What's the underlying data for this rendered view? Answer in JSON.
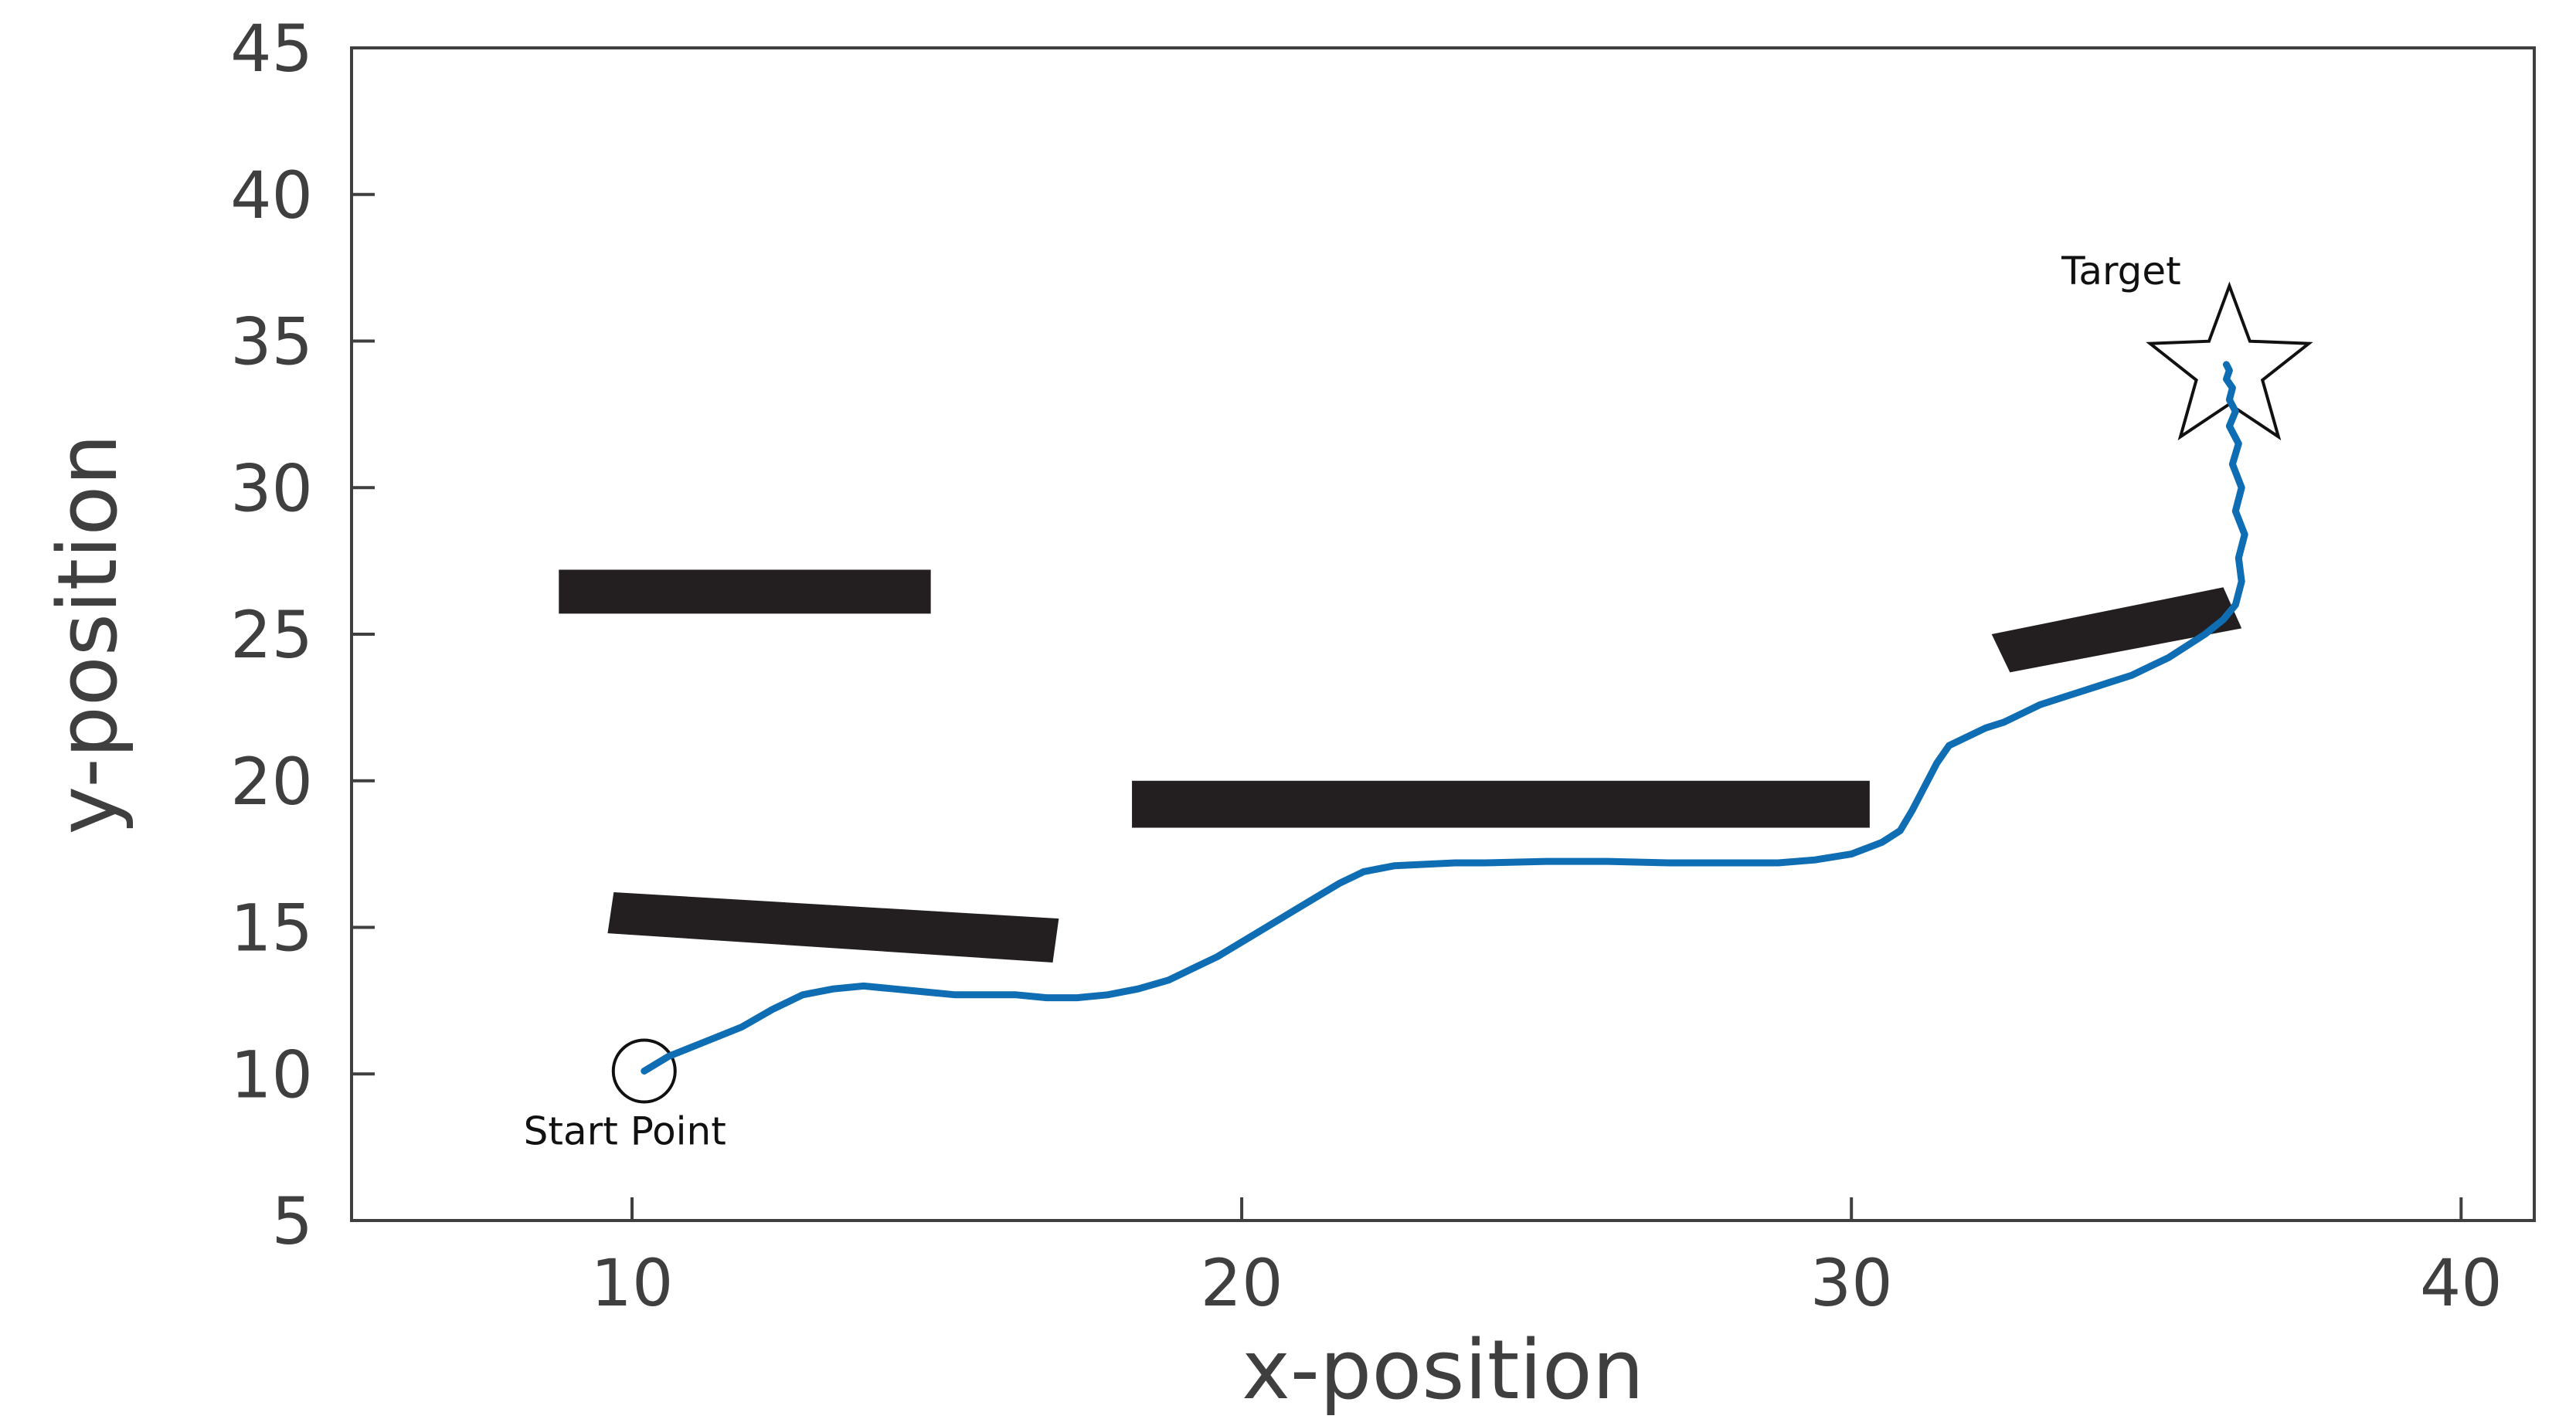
{
  "chart_data": {
    "type": "line",
    "title": "",
    "xlabel": "x-position",
    "ylabel": "y-position",
    "xlim": [
      5.4,
      41.2
    ],
    "ylim": [
      5,
      45
    ],
    "xticks": [
      10,
      20,
      30,
      40
    ],
    "yticks": [
      5,
      10,
      15,
      20,
      25,
      30,
      35,
      40,
      45
    ],
    "grid": false,
    "legend": "none",
    "colors": {
      "path": "#0f6db3",
      "obstacle": "#231f20",
      "axis": "#3f3f3f"
    },
    "series": [
      {
        "name": "",
        "x": [
          10.2,
          10.6,
          11.2,
          11.8,
          12.3,
          12.8,
          13.3,
          13.8,
          14.3,
          14.8,
          15.3,
          15.8,
          16.3,
          16.8,
          17.3,
          17.8,
          18.3,
          18.8,
          19.2,
          19.6,
          20.0,
          20.4,
          20.8,
          21.2,
          21.6,
          22.0,
          22.5,
          23.0,
          23.5,
          24.0,
          25.0,
          26.0,
          27.0,
          28.0,
          28.8,
          29.4,
          30.0,
          30.5,
          30.8,
          31.0,
          31.2,
          31.4,
          31.6,
          31.9,
          32.2,
          32.5,
          32.8,
          33.1,
          33.4,
          33.7,
          34.0,
          34.3,
          34.6,
          34.9,
          35.2,
          35.5,
          35.8,
          36.1,
          36.3,
          36.4,
          36.35,
          36.45,
          36.3,
          36.4,
          36.25,
          36.35,
          36.2,
          36.3,
          36.2,
          36.25,
          36.15,
          36.2,
          36.15
        ],
        "y": [
          10.1,
          10.6,
          11.1,
          11.6,
          12.2,
          12.7,
          12.9,
          13.0,
          12.9,
          12.8,
          12.7,
          12.7,
          12.7,
          12.6,
          12.6,
          12.7,
          12.9,
          13.2,
          13.6,
          14.0,
          14.5,
          15.0,
          15.5,
          16.0,
          16.5,
          16.9,
          17.1,
          17.15,
          17.2,
          17.2,
          17.25,
          17.25,
          17.2,
          17.2,
          17.2,
          17.3,
          17.5,
          17.9,
          18.3,
          19.0,
          19.8,
          20.6,
          21.2,
          21.5,
          21.8,
          22.0,
          22.3,
          22.6,
          22.8,
          23.0,
          23.2,
          23.4,
          23.6,
          23.9,
          24.2,
          24.6,
          25.0,
          25.5,
          26.0,
          26.8,
          27.6,
          28.4,
          29.2,
          30.0,
          30.8,
          31.5,
          32.1,
          32.6,
          33.0,
          33.4,
          33.7,
          34.0,
          34.2
        ]
      }
    ],
    "obstacles": [
      {
        "corners": [
          [
            8.8,
            27.2
          ],
          [
            14.9,
            27.2
          ],
          [
            14.9,
            25.7
          ],
          [
            8.8,
            25.7
          ]
        ]
      },
      {
        "corners": [
          [
            9.7,
            16.2
          ],
          [
            17.0,
            15.3
          ],
          [
            16.9,
            13.8
          ],
          [
            9.6,
            14.8
          ]
        ]
      },
      {
        "corners": [
          [
            18.2,
            20.0
          ],
          [
            30.3,
            20.0
          ],
          [
            30.3,
            18.4
          ],
          [
            18.2,
            18.4
          ]
        ]
      },
      {
        "corners": [
          [
            32.3,
            25.0
          ],
          [
            36.1,
            26.6
          ],
          [
            36.4,
            25.2
          ],
          [
            32.6,
            23.7
          ]
        ]
      }
    ],
    "start_point": {
      "x": 10.2,
      "y": 10.1,
      "label": "Start Point"
    },
    "target": {
      "x": 36.2,
      "y": 34.3,
      "label": "Target"
    }
  }
}
